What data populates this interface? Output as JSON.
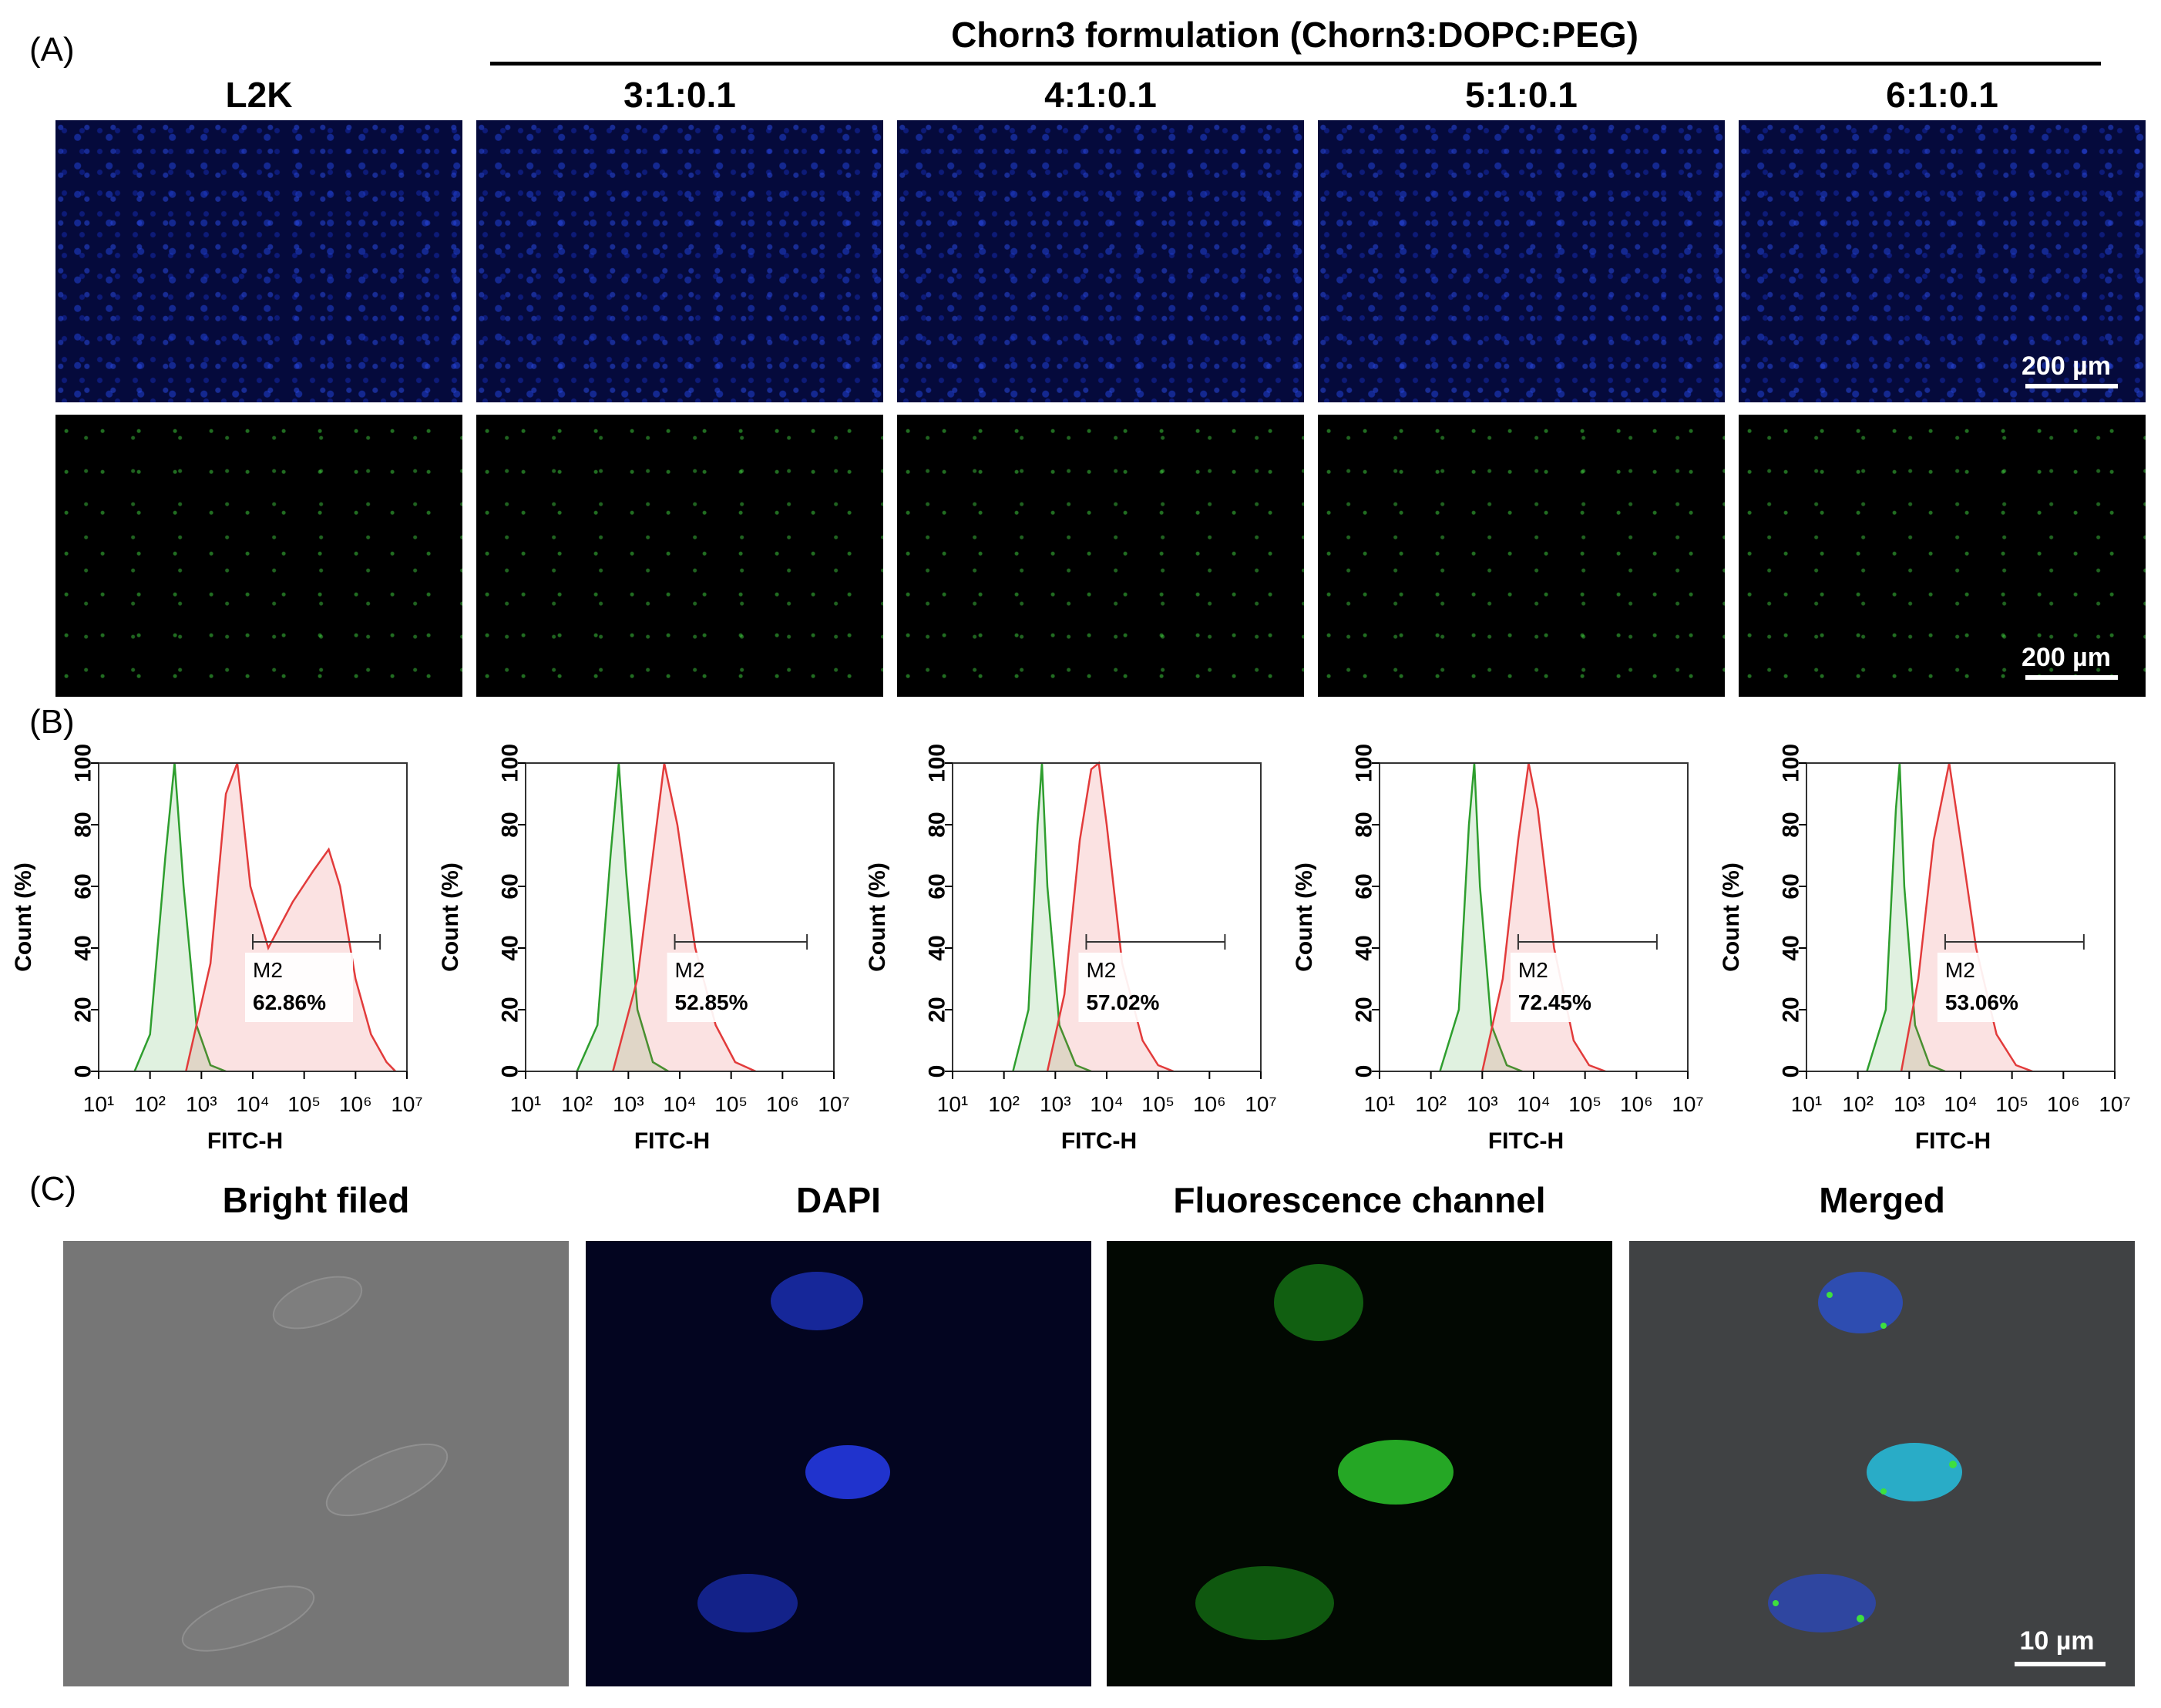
{
  "panel_labels": {
    "a": "(A)",
    "b": "(B)",
    "c": "(C)"
  },
  "panel_a": {
    "group_title": "Chorn3 formulation (Chorn3:DOPC:PEG)",
    "columns": [
      "L2K",
      "3:1:0.1",
      "4:1:0.1",
      "5:1:0.1",
      "6:1:0.1"
    ],
    "scale_bar": "200 µm"
  },
  "chart_data": [
    {
      "type": "area",
      "xlabel": "FITC-H",
      "ylabel": "Count (%)",
      "x_scale": "log",
      "xlim": [
        10,
        10000000
      ],
      "ylim": [
        0,
        100
      ],
      "yticks": [
        0,
        20,
        40,
        60,
        80,
        100
      ],
      "xticks": [
        "10¹",
        "10²",
        "10³",
        "10⁴",
        "10⁵",
        "10⁶",
        "10⁷"
      ],
      "gate_label": "M2",
      "gate_value": "62.86%",
      "gate_range": [
        10000,
        3000000
      ],
      "series": [
        {
          "color": "#2e9e2e",
          "points": [
            [
              50,
              0
            ],
            [
              100,
              12
            ],
            [
              200,
              70
            ],
            [
              300,
              100
            ],
            [
              450,
              60
            ],
            [
              800,
              15
            ],
            [
              1500,
              2
            ],
            [
              3000,
              0
            ]
          ]
        },
        {
          "color": "#e23b3b",
          "points": [
            [
              500,
              0
            ],
            [
              1500,
              35
            ],
            [
              3000,
              90
            ],
            [
              5000,
              100
            ],
            [
              9000,
              60
            ],
            [
              20000,
              40
            ],
            [
              60000,
              55
            ],
            [
              150000,
              65
            ],
            [
              300000,
              72
            ],
            [
              500000,
              60
            ],
            [
              1000000,
              30
            ],
            [
              2000000,
              12
            ],
            [
              4000000,
              3
            ],
            [
              6000000,
              0
            ]
          ]
        }
      ]
    },
    {
      "type": "area",
      "xlabel": "FITC-H",
      "ylabel": "Count (%)",
      "x_scale": "log",
      "xlim": [
        10,
        10000000
      ],
      "ylim": [
        0,
        100
      ],
      "yticks": [
        0,
        20,
        40,
        60,
        80,
        100
      ],
      "xticks": [
        "10¹",
        "10²",
        "10³",
        "10⁴",
        "10⁵",
        "10⁶",
        "10⁷"
      ],
      "gate_label": "M2",
      "gate_value": "52.85%",
      "gate_range": [
        8000,
        3000000
      ],
      "series": [
        {
          "color": "#2e9e2e",
          "points": [
            [
              100,
              0
            ],
            [
              250,
              15
            ],
            [
              450,
              70
            ],
            [
              650,
              100
            ],
            [
              900,
              65
            ],
            [
              1500,
              20
            ],
            [
              3000,
              3
            ],
            [
              6000,
              0
            ]
          ]
        },
        {
          "color": "#e23b3b",
          "points": [
            [
              500,
              0
            ],
            [
              1500,
              30
            ],
            [
              3000,
              70
            ],
            [
              5000,
              100
            ],
            [
              9000,
              80
            ],
            [
              20000,
              40
            ],
            [
              50000,
              15
            ],
            [
              120000,
              3
            ],
            [
              300000,
              0
            ]
          ]
        }
      ]
    },
    {
      "type": "area",
      "xlabel": "FITC-H",
      "ylabel": "Count (%)",
      "x_scale": "log",
      "xlim": [
        10,
        10000000
      ],
      "ylim": [
        0,
        100
      ],
      "yticks": [
        0,
        20,
        40,
        60,
        80,
        100
      ],
      "xticks": [
        "10¹",
        "10²",
        "10³",
        "10⁴",
        "10⁵",
        "10⁶",
        "10⁷"
      ],
      "gate_label": "M2",
      "gate_value": "57.02%",
      "gate_range": [
        4000,
        2000000
      ],
      "series": [
        {
          "color": "#2e9e2e",
          "points": [
            [
              150,
              0
            ],
            [
              300,
              20
            ],
            [
              450,
              80
            ],
            [
              550,
              100
            ],
            [
              700,
              60
            ],
            [
              1200,
              15
            ],
            [
              2500,
              2
            ],
            [
              5000,
              0
            ]
          ]
        },
        {
          "color": "#e23b3b",
          "points": [
            [
              700,
              0
            ],
            [
              1500,
              25
            ],
            [
              3000,
              75
            ],
            [
              5000,
              98
            ],
            [
              7000,
              100
            ],
            [
              10000,
              80
            ],
            [
              20000,
              35
            ],
            [
              50000,
              10
            ],
            [
              100000,
              2
            ],
            [
              200000,
              0
            ]
          ]
        }
      ]
    },
    {
      "type": "area",
      "xlabel": "FITC-H",
      "ylabel": "Count (%)",
      "x_scale": "log",
      "xlim": [
        10,
        10000000
      ],
      "ylim": [
        0,
        100
      ],
      "yticks": [
        0,
        20,
        40,
        60,
        80,
        100
      ],
      "xticks": [
        "10¹",
        "10²",
        "10³",
        "10⁴",
        "10⁵",
        "10⁶",
        "10⁷"
      ],
      "gate_label": "M2",
      "gate_value": "72.45%",
      "gate_range": [
        5000,
        2500000
      ],
      "series": [
        {
          "color": "#2e9e2e",
          "points": [
            [
              150,
              0
            ],
            [
              350,
              20
            ],
            [
              550,
              80
            ],
            [
              700,
              100
            ],
            [
              900,
              60
            ],
            [
              1500,
              15
            ],
            [
              3000,
              2
            ],
            [
              6000,
              0
            ]
          ]
        },
        {
          "color": "#e23b3b",
          "points": [
            [
              1000,
              0
            ],
            [
              2500,
              30
            ],
            [
              5000,
              75
            ],
            [
              8000,
              100
            ],
            [
              12000,
              85
            ],
            [
              25000,
              40
            ],
            [
              60000,
              10
            ],
            [
              120000,
              2
            ],
            [
              250000,
              0
            ]
          ]
        }
      ]
    },
    {
      "type": "area",
      "xlabel": "FITC-H",
      "ylabel": "Count (%)",
      "x_scale": "log",
      "xlim": [
        10,
        10000000
      ],
      "ylim": [
        0,
        100
      ],
      "yticks": [
        0,
        20,
        40,
        60,
        80,
        100
      ],
      "xticks": [
        "10¹",
        "10²",
        "10³",
        "10⁴",
        "10⁵",
        "10⁶",
        "10⁷"
      ],
      "gate_label": "M2",
      "gate_value": "53.06%",
      "gate_range": [
        5000,
        2500000
      ],
      "series": [
        {
          "color": "#2e9e2e",
          "points": [
            [
              150,
              0
            ],
            [
              350,
              20
            ],
            [
              550,
              85
            ],
            [
              650,
              100
            ],
            [
              800,
              60
            ],
            [
              1300,
              15
            ],
            [
              2500,
              2
            ],
            [
              5000,
              0
            ]
          ]
        },
        {
          "color": "#e23b3b",
          "points": [
            [
              700,
              0
            ],
            [
              1500,
              30
            ],
            [
              3000,
              75
            ],
            [
              6000,
              100
            ],
            [
              10000,
              75
            ],
            [
              20000,
              40
            ],
            [
              50000,
              12
            ],
            [
              120000,
              2
            ],
            [
              250000,
              0
            ]
          ]
        }
      ]
    }
  ],
  "panel_c": {
    "columns": [
      "Bright filed",
      "DAPI",
      "Fluorescence channel",
      "Merged"
    ],
    "scale_bar": "10 µm"
  }
}
